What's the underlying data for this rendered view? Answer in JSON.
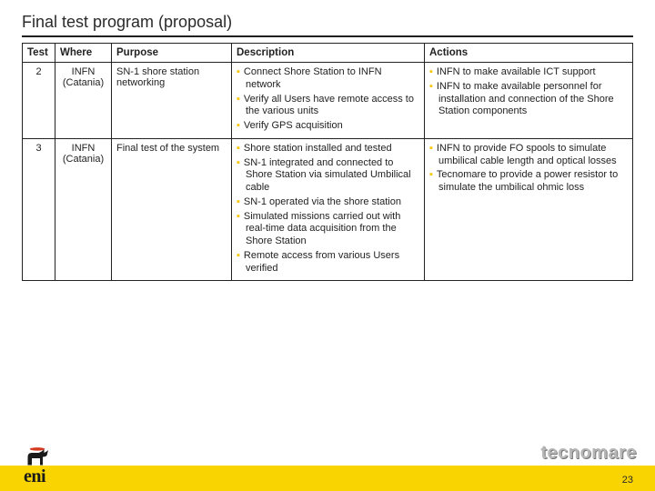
{
  "title": "Final test program (proposal)",
  "columns": {
    "test": "Test",
    "where": "Where",
    "purpose": "Purpose",
    "description": "Description",
    "actions": "Actions"
  },
  "rows": [
    {
      "test": "2",
      "where": "INFN (Catania)",
      "purpose": "SN-1 shore station networking",
      "description": [
        "Connect Shore Station to INFN network",
        "Verify all Users have remote access to the various units",
        "Verify GPS acquisition"
      ],
      "actions": [
        "INFN to make available ICT support",
        "INFN to make available personnel for installation and connection of the Shore Station components"
      ]
    },
    {
      "test": "3",
      "where": "INFN (Catania)",
      "purpose": "Final test of the system",
      "description": [
        "Shore station installed and tested",
        "SN-1 integrated and connected to Shore Station via simulated Umbilical cable",
        "SN-1 operated via the shore station",
        "Simulated missions carried out with real-time data acquisition from the Shore Station",
        "Remote access from various Users verified"
      ],
      "actions": [
        "INFN to provide FO spools to simulate umbilical cable length and optical losses",
        "Tecnomare to provide a power resistor to simulate the umbilical ohmic loss"
      ]
    }
  ],
  "footer": {
    "brand_left": "eni",
    "brand_right": "tecnomare",
    "page_number": "23"
  },
  "colors": {
    "accent": "#f9d400",
    "bullet": "#f7c600",
    "brand_right": "#b7b7b7",
    "text": "#222222",
    "rule": "#1f1f1f"
  }
}
